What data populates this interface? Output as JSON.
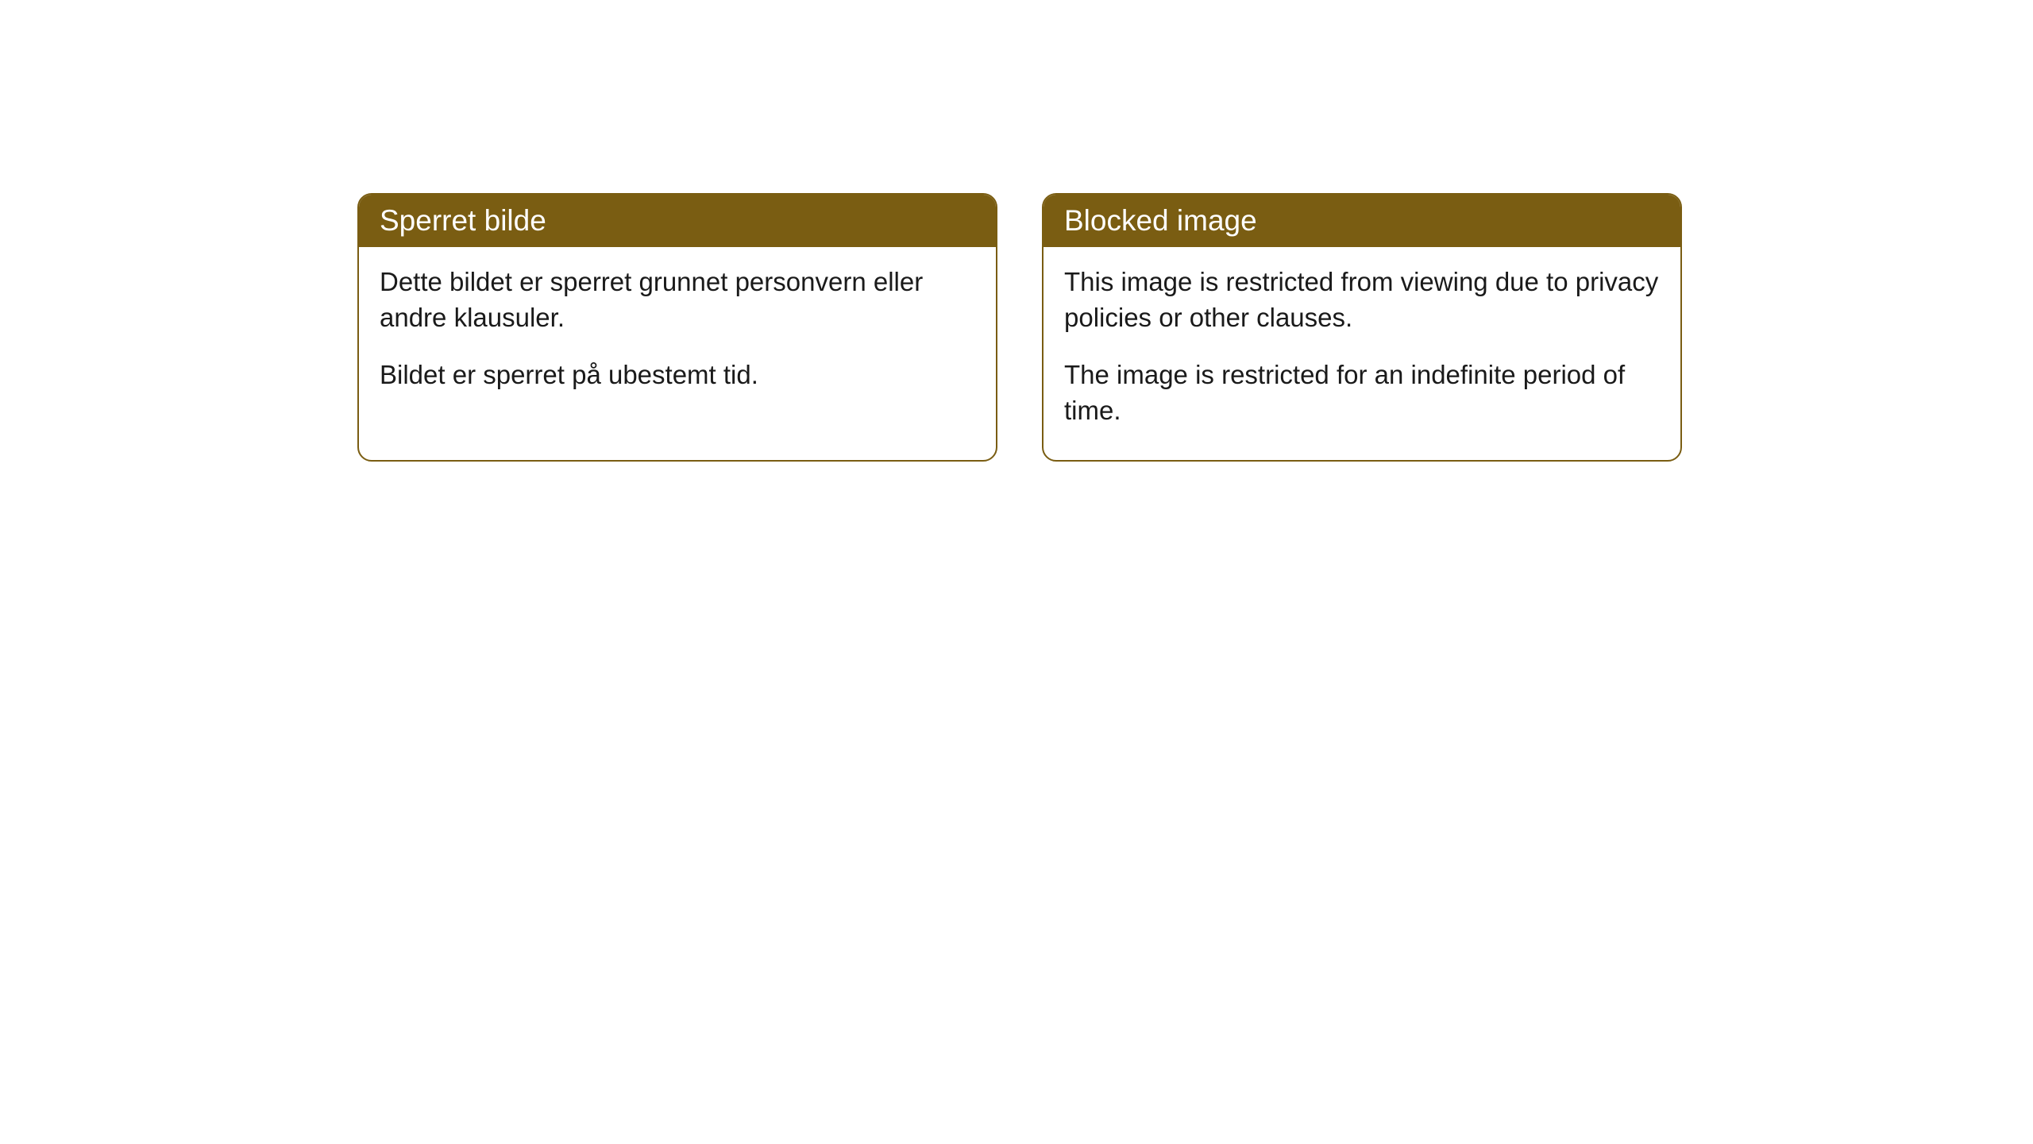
{
  "cards": [
    {
      "title": "Sperret bilde",
      "line1": "Dette bildet er sperret grunnet personvern eller andre klausuler.",
      "line2": "Bildet er sperret på ubestemt tid."
    },
    {
      "title": "Blocked image",
      "line1": "This image is restricted from viewing due to privacy policies or other clauses.",
      "line2": "The image is restricted for an indefinite period of time."
    }
  ],
  "style": {
    "header_bg": "#7a5d12",
    "header_text": "#ffffff",
    "body_text": "#1a1a1a",
    "border_color": "#7a5d12",
    "card_bg": "#ffffff",
    "page_bg": "#ffffff",
    "border_radius": 18,
    "title_fontsize": 37,
    "body_fontsize": 33
  }
}
